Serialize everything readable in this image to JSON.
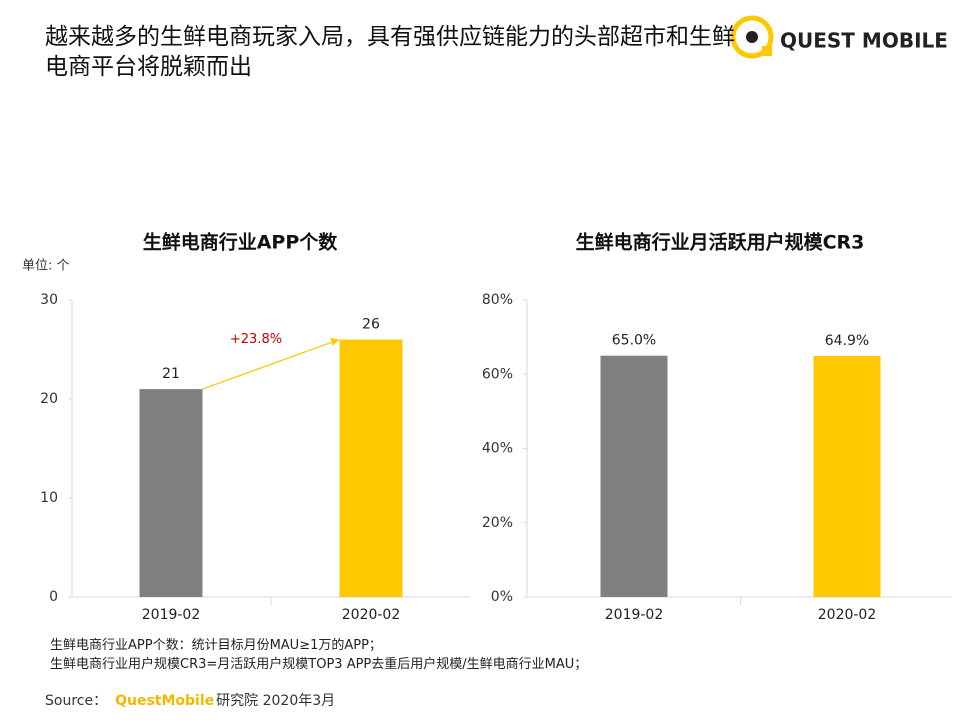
{
  "title": "越来越多的生鲜电商玩家入局，具有强供应链能力的头部超市和生鲜电商平台将脱颖而出",
  "logo": "QUEST MOBILE",
  "chart_data": [
    {
      "type": "bar",
      "title": "生鲜电商行业APP个数",
      "unit_label": "单位: 个",
      "categories": [
        "2019-02",
        "2020-02"
      ],
      "values": [
        21,
        26
      ],
      "colors": [
        "#808080",
        "#ffc800"
      ],
      "ylim": [
        0,
        30
      ],
      "yticks": [
        0,
        10,
        20,
        30
      ],
      "annotation": "+23.8%"
    },
    {
      "type": "bar",
      "title": "生鲜电商行业月活跃用户规模CR3",
      "categories": [
        "2019-02",
        "2020-02"
      ],
      "values": [
        65.0,
        64.9
      ],
      "value_labels": [
        "65.0%",
        "64.9%"
      ],
      "colors": [
        "#808080",
        "#ffc800"
      ],
      "ylim": [
        0,
        80
      ],
      "yticks": [
        {
          "value": 0,
          "label": "0%"
        },
        {
          "value": 20,
          "label": "20%"
        },
        {
          "value": 40,
          "label": "40%"
        },
        {
          "value": 60,
          "label": "60%"
        },
        {
          "value": 80,
          "label": "80%"
        }
      ]
    }
  ],
  "notes": [
    "生鲜电商行业APP个数：统计目标月份MAU≥1万的APP；",
    "生鲜电商行业用户规模CR3=月活跃用户规模TOP3 APP去重后用户规模/生鲜电商行业MAU；"
  ],
  "source": {
    "prefix": "Source：",
    "brand": "QuestMobile",
    "suffix": "研究院 2020年3月"
  }
}
